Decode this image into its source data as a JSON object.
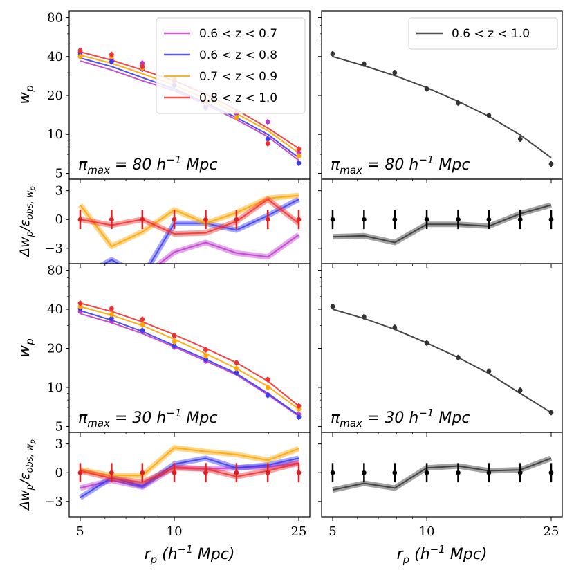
{
  "chart_data": {
    "type": "line",
    "figure": "projected correlation function multipanel",
    "x": [
      5.0,
      6.3,
      7.9,
      10.0,
      12.6,
      15.8,
      19.9,
      25.0
    ],
    "x_ticks": [
      {
        "v": 5,
        "label": "5"
      },
      {
        "v": 10,
        "label": "10"
      },
      {
        "v": 25,
        "label": "25"
      }
    ],
    "xlabel": "r_p (h^-1 Mpc)",
    "xlabel_parts": {
      "var": "r",
      "sub": "p",
      "pre": " (h",
      "sup": "−1",
      "post": " Mpc)"
    },
    "ylabel_wp": {
      "var": "w",
      "sub": "p"
    },
    "ylabel_res": {
      "pre": "Δw",
      "sub1": "p",
      "mid": "/ε",
      "sub2": "obs, w",
      "sub3": "p"
    },
    "wp_ticks": [
      {
        "v": 5,
        "label": "5"
      },
      {
        "v": 10,
        "label": "10"
      },
      {
        "v": 20,
        "label": "20"
      },
      {
        "v": 40,
        "label": "40"
      },
      {
        "v": 80,
        "label": "80"
      }
    ],
    "res_ticks": [
      {
        "v": -3,
        "label": "−3"
      },
      {
        "v": 0,
        "label": "0"
      },
      {
        "v": 3,
        "label": "3"
      }
    ],
    "wp_ylim": [
      4.5,
      90
    ],
    "res_ylim": [
      -4.6,
      4.2
    ],
    "panel_labels": {
      "top": {
        "pre": "π",
        "sub": "max",
        "eq": " = 80 ",
        "h": "h",
        "sup": "−1",
        "post": " Mpc"
      },
      "bottom": {
        "pre": "π",
        "sub": "max",
        "eq": " = 30 ",
        "h": "h",
        "sup": "−1",
        "post": " Mpc"
      }
    },
    "legend_left": [
      {
        "label": "0.6 < z < 0.7",
        "color": "#c03cd0"
      },
      {
        "label": "0.6 < z < 0.8",
        "color": "#3a3af0"
      },
      {
        "label": "0.7 < z < 0.9",
        "color": "#ffa500"
      },
      {
        "label": "0.8 < z < 1.0",
        "color": "#f03030"
      }
    ],
    "legend_right": [
      {
        "label": "0.6 < z < 1.0",
        "color": "#333333"
      }
    ],
    "panels": [
      {
        "name": "wp-top-left",
        "kind": "wp",
        "col": 0,
        "row": 0,
        "series": [
          {
            "name": "0.6 < z < 0.7",
            "color": "#c03cd0",
            "model": [
              37,
              31.5,
              26,
              21.8,
              17,
              13,
              9.6,
              6.3
            ],
            "data": [
              41.5,
              38,
              35.5,
              26,
              16,
              14.5,
              12.5,
              7.2
            ]
          },
          {
            "name": "0.6 < z < 0.8",
            "color": "#3a3af0",
            "model": [
              39,
              33.5,
              27.5,
              22.5,
              17.5,
              13.5,
              10,
              6.6
            ],
            "data": [
              43,
              36.5,
              32,
              24,
              16.5,
              13.5,
              9.2,
              6.0
            ]
          },
          {
            "name": "0.7 < z < 0.9",
            "color": "#ffa500",
            "model": [
              41,
              35.5,
              29.5,
              24,
              19,
              14.5,
              10.7,
              7.2
            ],
            "data": [
              40,
              40,
              32.5,
              27,
              17.5,
              13.5,
              8.5,
              6.8
            ]
          },
          {
            "name": "0.8 < z < 1.0",
            "color": "#f03030",
            "model": [
              43.5,
              37.5,
              31.5,
              26,
              20.5,
              15.5,
              11.2,
              7.8
            ],
            "data": [
              44.5,
              41.5,
              33.5,
              26,
              18,
              15,
              8.5,
              7.7
            ]
          }
        ]
      },
      {
        "name": "wp-top-right",
        "kind": "wp",
        "col": 1,
        "row": 0,
        "series": [
          {
            "name": "0.6 < z < 1.0",
            "color": "#333333",
            "model": [
              40,
              34,
              28.5,
              23,
              18,
              13.8,
              9.9,
              6.6
            ],
            "data": [
              42,
              35,
              30,
              22.5,
              17.5,
              14,
              9.2,
              5.9
            ]
          }
        ]
      },
      {
        "name": "res-top-left",
        "kind": "res",
        "col": 0,
        "row": 0,
        "series": [
          {
            "name": "0.6 < z < 0.7",
            "color": "#c03cd0",
            "model": [
              -6,
              -6,
              -6,
              -3.4,
              -2.4,
              -3.5,
              -3.9,
              -1.6
            ]
          },
          {
            "name": "0.6 < z < 0.8",
            "color": "#3a3af0",
            "model": [
              -6,
              -4.2,
              -6,
              -0.4,
              -0.4,
              -1.1,
              0.4,
              2.1
            ]
          },
          {
            "name": "0.7 < z < 0.9",
            "color": "#ffa500",
            "model": [
              1.5,
              -2.8,
              -1.3,
              1.0,
              -0.4,
              0.7,
              2.2,
              2.5
            ]
          },
          {
            "name": "0.8 < z < 1.0",
            "color": "#f03030",
            "model": [
              0,
              -0.6,
              0.0,
              -1.5,
              -1.4,
              -0.2,
              2.1,
              -0.4
            ]
          }
        ],
        "points": {
          "color": "#e02020",
          "values": [
            0,
            0,
            0,
            0,
            0,
            0,
            0,
            0
          ],
          "err": [
            1,
            1,
            1,
            1,
            1,
            1,
            1,
            1
          ]
        }
      },
      {
        "name": "res-top-right",
        "kind": "res",
        "col": 1,
        "row": 0,
        "series": [
          {
            "name": "0.6 < z < 1.0",
            "color": "#333333",
            "model": [
              -1.8,
              -1.7,
              -2.4,
              -0.5,
              -0.5,
              -0.7,
              0.6,
              1.5
            ]
          }
        ],
        "points": {
          "color": "#000000",
          "values": [
            0,
            0,
            0,
            0,
            0,
            0,
            0,
            0
          ],
          "err": [
            1,
            1,
            1,
            1,
            1,
            1,
            1,
            1
          ]
        }
      },
      {
        "name": "wp-bottom-left",
        "kind": "wp",
        "col": 0,
        "row": 1,
        "series": [
          {
            "name": "0.6 < z < 0.7",
            "color": "#c03cd0",
            "model": [
              37,
              31.5,
              26,
              20.5,
              16,
              12.5,
              8.8,
              6.0
            ],
            "data": [
              38.5,
              32.5,
              27,
              20.5,
              16,
              13,
              8.8,
              6.2
            ]
          },
          {
            "name": "0.6 < z < 0.8",
            "color": "#3a3af0",
            "model": [
              39,
              33,
              27,
              21,
              16.5,
              12.8,
              9.0,
              6.1
            ],
            "data": [
              40.5,
              34,
              27.5,
              21,
              16.5,
              13,
              8.7,
              5.9
            ]
          },
          {
            "name": "0.7 < z < 0.9",
            "color": "#ffa500",
            "model": [
              42,
              36,
              30,
              23.5,
              18.2,
              14,
              10.2,
              6.8
            ],
            "data": [
              42,
              36.5,
              30.5,
              22.5,
              17.5,
              14,
              10,
              6.8
            ]
          },
          {
            "name": "0.8 < z < 1.0",
            "color": "#f03030",
            "model": [
              44.5,
              38.5,
              32,
              25.5,
              20,
              15.5,
              11.2,
              7.2
            ],
            "data": [
              44.5,
              40.5,
              33.5,
              25,
              19.5,
              15.5,
              11.5,
              7.2
            ]
          }
        ]
      },
      {
        "name": "wp-bottom-right",
        "kind": "wp",
        "col": 1,
        "row": 1,
        "series": [
          {
            "name": "0.6 < z < 1.0",
            "color": "#333333",
            "model": [
              40,
              34,
              28,
              22,
              17,
              12.8,
              9.0,
              6.4
            ],
            "data": [
              42,
              35,
              29,
              22,
              17,
              13.3,
              9.5,
              6.4
            ]
          }
        ]
      },
      {
        "name": "res-bottom-left",
        "kind": "res",
        "col": 0,
        "row": 1,
        "series": [
          {
            "name": "0.6 < z < 0.7",
            "color": "#c03cd0",
            "model": [
              -1.6,
              -0.8,
              -1.5,
              0.6,
              0.4,
              0.5,
              0.6,
              1.0
            ]
          },
          {
            "name": "0.6 < z < 0.8",
            "color": "#3a3af0",
            "model": [
              -2.6,
              -0.5,
              -1.4,
              0.9,
              1.5,
              0.5,
              0.8,
              1.5
            ]
          },
          {
            "name": "0.7 < z < 0.9",
            "color": "#ffa500",
            "model": [
              0.3,
              -0.3,
              -0.3,
              2.6,
              2.2,
              1.9,
              1.3,
              2.5
            ]
          },
          {
            "name": "0.8 < z < 1.0",
            "color": "#f03030",
            "model": [
              0.2,
              -0.6,
              -1.0,
              0.5,
              0.4,
              -0.4,
              0.2,
              1.0
            ]
          }
        ],
        "points": {
          "color": "#e02020",
          "values": [
            0,
            0,
            0,
            0,
            0,
            0,
            0,
            0
          ],
          "err": [
            1,
            1,
            1,
            1,
            1,
            1,
            1,
            1
          ]
        }
      },
      {
        "name": "res-bottom-right",
        "kind": "res",
        "col": 1,
        "row": 1,
        "series": [
          {
            "name": "0.6 < z < 1.0",
            "color": "#333333",
            "model": [
              -1.8,
              -1.1,
              -1.6,
              0.5,
              0.7,
              0.2,
              0.3,
              1.5
            ]
          }
        ],
        "points": {
          "color": "#000000",
          "values": [
            0,
            0,
            0,
            0,
            0,
            0,
            0,
            0
          ],
          "err": [
            1,
            1,
            1,
            1,
            1,
            1,
            1,
            1
          ]
        }
      }
    ]
  }
}
